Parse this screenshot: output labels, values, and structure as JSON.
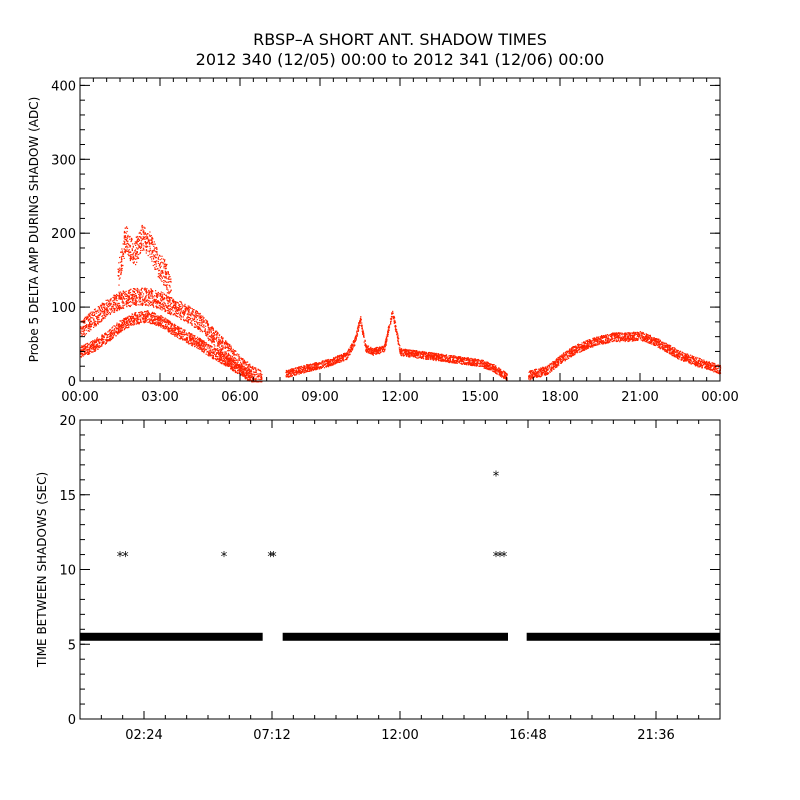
{
  "title": {
    "line1": "RBSP–A SHORT ANT. SHADOW TIMES",
    "line2": "2012 340 (12/05) 00:00 to 2012 341 (12/06) 00:00"
  },
  "chart_data": [
    {
      "type": "scatter",
      "ylabel": "Probe 5 DELTA AMP DURING SHADOW (ADC)",
      "xlim": [
        0,
        24
      ],
      "ylim": [
        0,
        410
      ],
      "x_unit": "hours",
      "x_ticks": [
        0,
        3,
        6,
        9,
        12,
        15,
        18,
        21,
        24
      ],
      "x_tick_labels": [
        "00:00",
        "03:00",
        "06:00",
        "09:00",
        "12:00",
        "15:00",
        "18:00",
        "21:00",
        "00:00"
      ],
      "y_ticks": [
        0,
        100,
        200,
        300,
        400
      ],
      "y_tick_labels": [
        "0",
        "100",
        "200",
        "300",
        "400"
      ],
      "color": "#ff2200",
      "series_bands": [
        {
          "points": [
            [
              0.0,
              70
            ],
            [
              0.5,
              85
            ],
            [
              1.0,
              100
            ],
            [
              1.5,
              110
            ],
            [
              2.0,
              115
            ],
            [
              2.5,
              115
            ],
            [
              3.0,
              110
            ],
            [
              3.5,
              100
            ],
            [
              4.0,
              92
            ],
            [
              4.5,
              80
            ],
            [
              5.0,
              60
            ],
            [
              5.5,
              42
            ],
            [
              6.0,
              22
            ],
            [
              6.5,
              8
            ],
            [
              6.8,
              2
            ]
          ],
          "spread": 12
        },
        {
          "points": [
            [
              0.0,
              40
            ],
            [
              0.5,
              48
            ],
            [
              1.0,
              60
            ],
            [
              1.5,
              75
            ],
            [
              2.0,
              85
            ],
            [
              2.5,
              88
            ],
            [
              3.0,
              82
            ],
            [
              3.5,
              70
            ],
            [
              4.0,
              60
            ],
            [
              4.5,
              50
            ],
            [
              5.0,
              38
            ],
            [
              5.5,
              28
            ],
            [
              6.0,
              15
            ],
            [
              6.5,
              5
            ]
          ],
          "spread": 8
        },
        {
          "points": [
            [
              1.4,
              140
            ],
            [
              1.7,
              195
            ],
            [
              2.0,
              170
            ],
            [
              2.3,
              195
            ],
            [
              2.6,
              185
            ],
            [
              2.9,
              160
            ],
            [
              3.2,
              145
            ],
            [
              3.4,
              120
            ]
          ],
          "spread": 18
        },
        {
          "points": [
            [
              7.7,
              10
            ],
            [
              8.5,
              18
            ],
            [
              9.3,
              25
            ],
            [
              10.0,
              35
            ],
            [
              10.3,
              55
            ],
            [
              10.5,
              85
            ],
            [
              10.7,
              45
            ],
            [
              11.0,
              40
            ],
            [
              11.4,
              45
            ],
            [
              11.7,
              95
            ],
            [
              12.0,
              40
            ],
            [
              13.0,
              35
            ],
            [
              14.0,
              30
            ],
            [
              15.0,
              25
            ],
            [
              15.5,
              18
            ],
            [
              16.0,
              6
            ]
          ],
          "spread": 5
        },
        {
          "points": [
            [
              16.8,
              8
            ],
            [
              17.5,
              15
            ],
            [
              18.0,
              30
            ],
            [
              18.5,
              42
            ],
            [
              19.0,
              50
            ],
            [
              19.5,
              56
            ],
            [
              20.0,
              60
            ],
            [
              20.5,
              60
            ],
            [
              21.0,
              62
            ],
            [
              21.5,
              55
            ],
            [
              22.0,
              45
            ],
            [
              22.5,
              35
            ],
            [
              23.0,
              28
            ],
            [
              23.5,
              22
            ],
            [
              24.0,
              16
            ]
          ],
          "spread": 6
        }
      ]
    },
    {
      "type": "scatter",
      "ylabel": "TIME BETWEEN SHADOWS (SEC)",
      "xlim": [
        0,
        24
      ],
      "ylim": [
        0,
        20
      ],
      "x_unit": "hours",
      "x_ticks": [
        2.4,
        7.2,
        12.0,
        16.8,
        21.6
      ],
      "x_tick_labels": [
        "02:24",
        "07:12",
        "12:00",
        "16:48",
        "21:36"
      ],
      "y_ticks": [
        0,
        5,
        10,
        15,
        20
      ],
      "y_tick_labels": [
        "0",
        "5",
        "10",
        "15",
        "20"
      ],
      "color": "#000000",
      "baseline_segments": [
        {
          "x_start": 0.0,
          "x_end": 6.85,
          "y": 5.5
        },
        {
          "x_start": 7.6,
          "x_end": 16.05,
          "y": 5.5
        },
        {
          "x_start": 16.75,
          "x_end": 24.0,
          "y": 5.5
        }
      ],
      "outliers": [
        [
          1.5,
          10.9
        ],
        [
          1.7,
          10.9
        ],
        [
          5.4,
          10.9
        ],
        [
          7.15,
          10.9
        ],
        [
          7.25,
          10.9
        ],
        [
          15.6,
          16.3
        ],
        [
          15.6,
          10.9
        ],
        [
          15.75,
          10.9
        ],
        [
          15.9,
          10.9
        ]
      ]
    }
  ]
}
